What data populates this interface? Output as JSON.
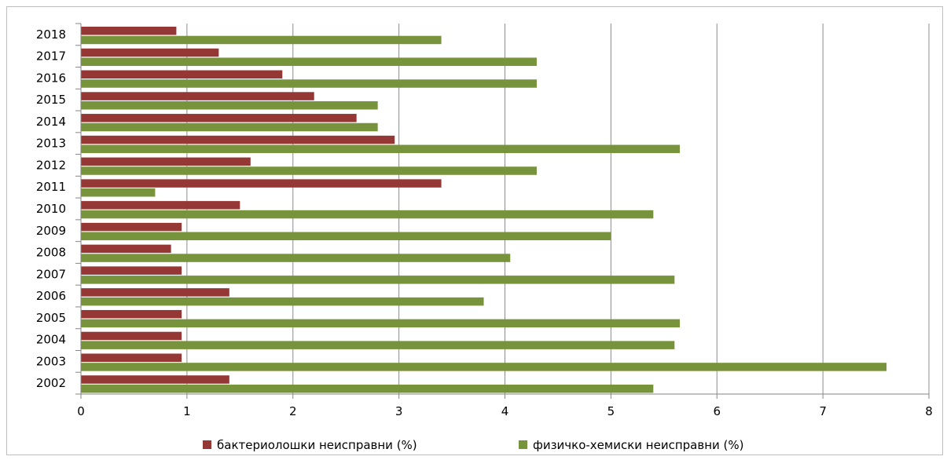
{
  "chart_data": {
    "type": "bar",
    "orientation": "horizontal",
    "categories": [
      "2018",
      "2017",
      "2016",
      "2015",
      "2014",
      "2013",
      "2012",
      "2011",
      "2010",
      "2009",
      "2008",
      "2007",
      "2006",
      "2005",
      "2004",
      "2003",
      "2002"
    ],
    "series": [
      {
        "name": "бактериолошки неисправни (%)",
        "color": "#953735",
        "values": [
          0.9,
          1.3,
          1.9,
          2.2,
          2.6,
          2.96,
          1.6,
          3.4,
          1.5,
          0.95,
          0.85,
          0.95,
          1.4,
          0.95,
          0.95,
          0.95,
          1.4
        ]
      },
      {
        "name": "физичко-хемиски неисправни (%)",
        "color": "#77933c",
        "values": [
          3.4,
          4.3,
          4.3,
          2.8,
          2.8,
          5.65,
          4.3,
          0.7,
          5.4,
          5.0,
          4.05,
          5.6,
          3.8,
          5.65,
          5.6,
          7.6,
          5.4
        ]
      }
    ],
    "x_ticks": [
      "0",
      "1",
      "2",
      "3",
      "4",
      "5",
      "6",
      "7",
      "8"
    ],
    "xlim": [
      0,
      8
    ],
    "grid": "vertical major gridlines",
    "legend": "bottom"
  }
}
